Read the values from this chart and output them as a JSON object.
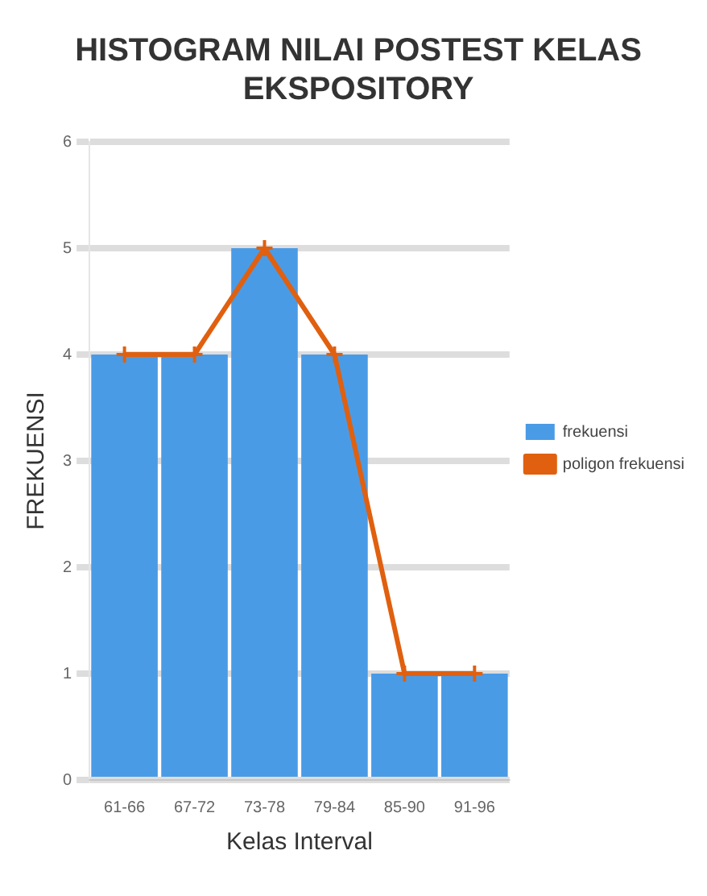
{
  "chart_data": {
    "type": "bar",
    "title": [
      "HISTOGRAM NILAI POSTEST KELAS",
      "EKSPOSITORY"
    ],
    "xlabel": "Kelas Interval",
    "ylabel": "FREKUENSI",
    "categories": [
      "61-66",
      "67-72",
      "73-78",
      "79-84",
      "85-90",
      "91-96"
    ],
    "series": [
      {
        "name": "frekuensi",
        "color": "#4a9be6",
        "values": [
          4,
          4,
          5,
          4,
          1,
          1
        ]
      },
      {
        "name": "poligon frekuensi",
        "type": "line",
        "color": "#e0600f",
        "values": [
          4,
          4,
          5,
          4,
          1,
          1
        ]
      }
    ],
    "ylim": [
      0,
      6
    ],
    "yticks": [
      0,
      1,
      2,
      3,
      4,
      5,
      6
    ],
    "grid": "y",
    "legend": "right",
    "marker": "cross"
  }
}
